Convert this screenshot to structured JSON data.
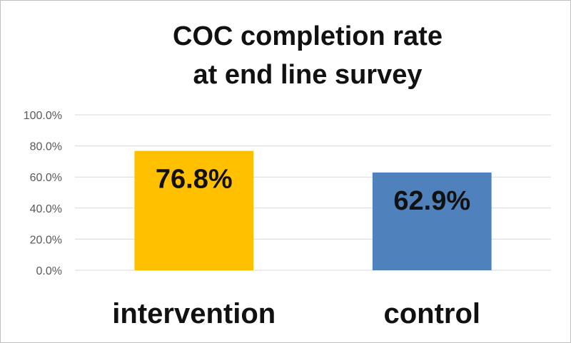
{
  "chart_data": {
    "type": "bar",
    "title_lines": [
      "COC completion rate",
      "at end line survey"
    ],
    "categories": [
      "intervention",
      "control"
    ],
    "values": [
      76.8,
      62.9
    ],
    "data_labels": [
      "76.8%",
      "62.9%"
    ],
    "colors": [
      "#FFC000",
      "#4F81BD"
    ],
    "ylim": [
      0,
      100
    ],
    "yticks": [
      0,
      20,
      40,
      60,
      80,
      100
    ],
    "ytick_labels": [
      "0.0%",
      "20.0%",
      "40.0%",
      "60.0%",
      "80.0%",
      "100.0%"
    ],
    "grid": true,
    "legend": "none"
  }
}
